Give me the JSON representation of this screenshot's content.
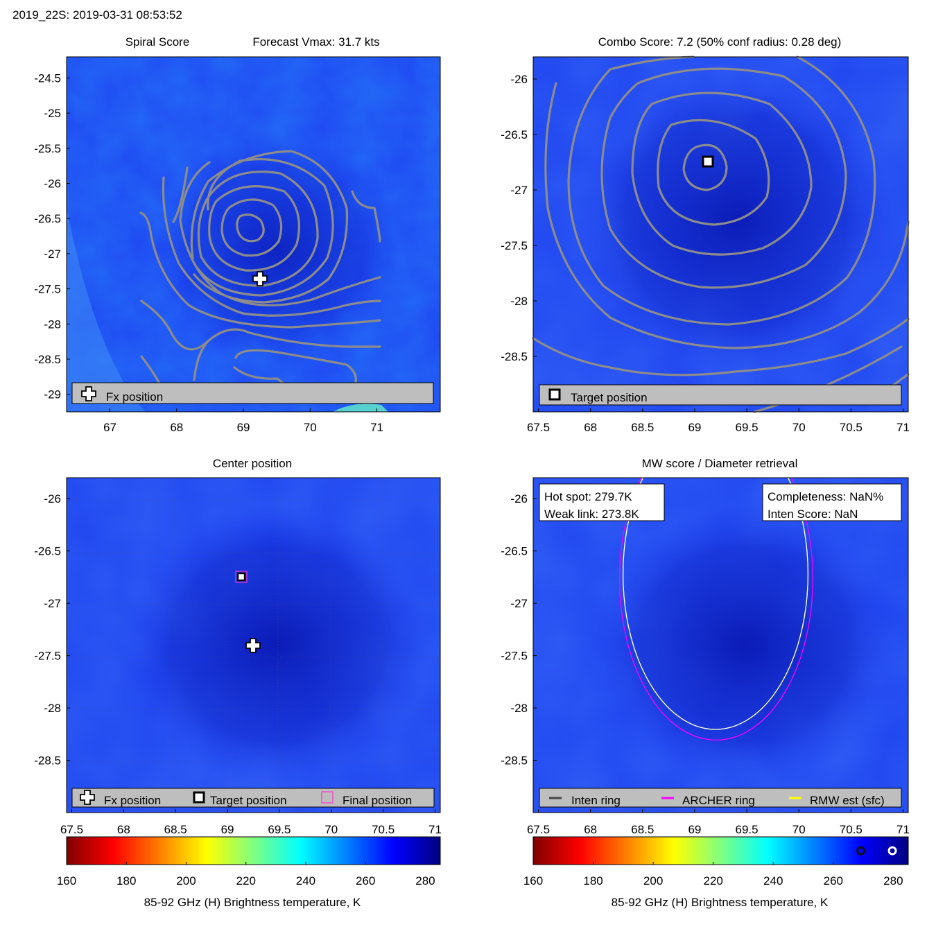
{
  "figure": {
    "title": "2019_22S: 2019-03-31 08:53:52"
  },
  "chart_data": [
    {
      "type": "heatmap",
      "id": "spiral",
      "title": "Spiral Score",
      "title2": "Forecast Vmax: 31.7 kts",
      "xlim": [
        66.35,
        71.95
      ],
      "ylim": [
        -29.25,
        -24.2
      ],
      "xticks": [
        67,
        68,
        69,
        70,
        71
      ],
      "yticks": [
        -24.5,
        -25,
        -25.5,
        -26,
        -26.5,
        -27,
        -27.5,
        -28,
        -28.5,
        -29
      ],
      "background": "brightness temperature field (85-92 GHz H)",
      "contour_center": [
        69.13,
        -26.63
      ],
      "markers": [
        {
          "type": "fx",
          "x": 69.25,
          "y": -27.38
        }
      ],
      "legend": [
        {
          "symbol": "fx",
          "label": "Fx position"
        }
      ]
    },
    {
      "type": "heatmap",
      "id": "combo",
      "title": "Combo Score: 7.2  (50% conf radius: 0.28 deg)",
      "xlim": [
        67.45,
        71.05
      ],
      "ylim": [
        -29.0,
        -25.8
      ],
      "xticks": [
        67.5,
        68,
        68.5,
        69,
        69.5,
        70,
        70.5,
        71
      ],
      "yticks": [
        -26,
        -26.5,
        -27,
        -27.5,
        -28,
        -28.5
      ],
      "background": "brightness temperature field (85-92 GHz H)",
      "contour_center": [
        69.17,
        -26.73
      ],
      "markers": [
        {
          "type": "target",
          "x": 69.15,
          "y": -26.73
        }
      ],
      "legend": [
        {
          "symbol": "target",
          "label": "Target position"
        }
      ]
    },
    {
      "type": "heatmap",
      "id": "center",
      "title": "Center position",
      "xlim": [
        67.45,
        71.05
      ],
      "ylim": [
        -29.0,
        -25.8
      ],
      "xticks": [
        67.5,
        68,
        68.5,
        69,
        69.5,
        70,
        70.5,
        71
      ],
      "yticks": [
        -26,
        -26.5,
        -27,
        -27.5,
        -28,
        -28.5
      ],
      "background": "brightness temperature field (85-92 GHz H)",
      "markers": [
        {
          "type": "target",
          "x": 69.15,
          "y": -26.73
        },
        {
          "type": "final",
          "x": 69.15,
          "y": -26.73
        },
        {
          "type": "fx",
          "x": 69.25,
          "y": -27.38
        }
      ],
      "legend": [
        {
          "symbol": "fx",
          "label": "Fx position"
        },
        {
          "symbol": "target",
          "label": "Target position"
        },
        {
          "symbol": "final",
          "label": "Final position"
        }
      ]
    },
    {
      "type": "heatmap",
      "id": "mw",
      "title": "MW score / Diameter retrieval",
      "xlim": [
        67.45,
        71.05
      ],
      "ylim": [
        -29.0,
        -25.8
      ],
      "xticks": [
        67.5,
        68,
        68.5,
        69,
        69.5,
        70,
        70.5,
        71
      ],
      "yticks": [
        -26,
        -26.5,
        -27,
        -27.5,
        -28,
        -28.5
      ],
      "background": "brightness temperature field (85-92 GHz H)",
      "rings": [
        {
          "name": "ARCHER ring",
          "color": "#ff00ff",
          "cx": 69.2,
          "cy": -26.74,
          "r": 1.37
        },
        {
          "name": "RMW est (sfc)",
          "color": "#ffff00",
          "cx": 69.2,
          "cy": -26.72,
          "r": 1.35
        },
        {
          "name": "Inten ring",
          "color": "#ffffff",
          "cx": 69.2,
          "cy": -26.72,
          "r": 1.35
        }
      ],
      "info_left": [
        "Hot spot: 279.7K",
        "Weak link: 273.8K"
      ],
      "info_right": [
        "Completeness: NaN%",
        "Inten Score: NaN"
      ],
      "legend": [
        {
          "symbol": "line",
          "color": "#444444",
          "label": "Inten ring"
        },
        {
          "symbol": "line",
          "color": "#ff00ff",
          "label": "ARCHER ring"
        },
        {
          "symbol": "line",
          "color": "#ffff00",
          "label": "RMW est (sfc)"
        }
      ]
    }
  ],
  "colorbar": {
    "label": "85-92 GHz (H) Brightness temperature, K",
    "range": [
      160,
      285
    ],
    "ticks": [
      160,
      180,
      200,
      220,
      240,
      260,
      280
    ],
    "colors": [
      "#800000",
      "#ff0000",
      "#ff8000",
      "#ffff00",
      "#80ff80",
      "#00ffff",
      "#0080ff",
      "#0000ff",
      "#000080"
    ],
    "bar_markers": [
      {
        "type": "ring-dark",
        "value": 273.8
      },
      {
        "type": "ring-light",
        "value": 279.7
      }
    ]
  },
  "colors": {
    "field_base": "#1c3bf0",
    "field_dark": "#0a1cc8",
    "field_light": "#2f6df4",
    "contour": "#8c8c8c",
    "legend_bg": "#bebebe"
  }
}
